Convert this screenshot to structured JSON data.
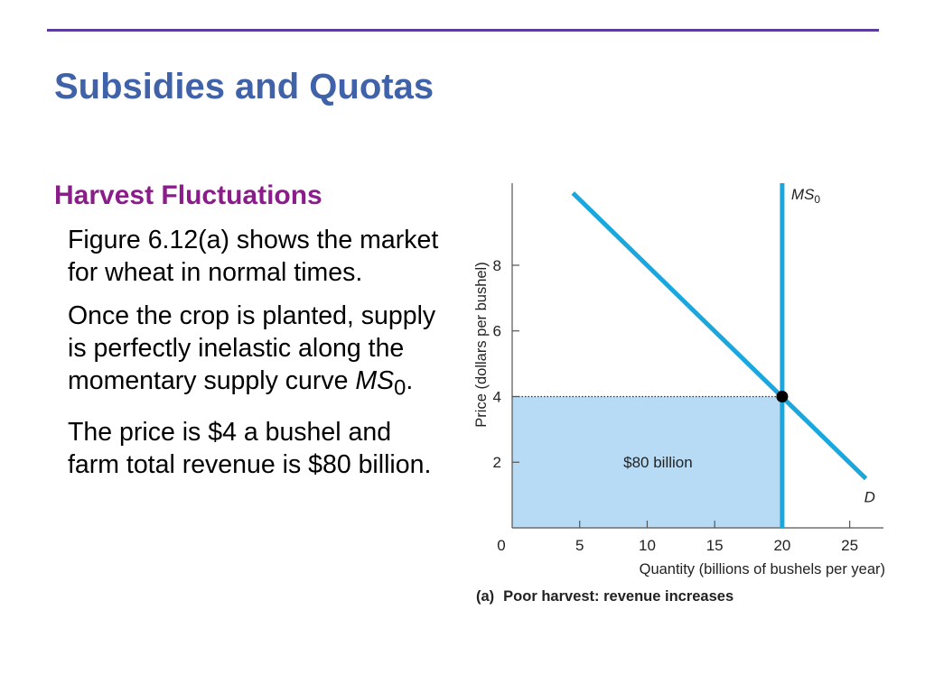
{
  "slide": {
    "title": "Subsidies and Quotas",
    "subtitle": "Harvest Fluctuations",
    "paragraphs": [
      {
        "text": "Figure 6.12(a) shows the market for wheat in normal times."
      },
      {
        "text_before": "Once the crop is planted, supply is perfectly inelastic along the momentary supply curve ",
        "italic": "MS",
        "sub": "0",
        "text_after": "."
      },
      {
        "text": "The price is $4 a bushel and farm total revenue is $80 billion."
      }
    ]
  },
  "colors": {
    "rule": "#5a3c9e",
    "title": "#3f62a9",
    "subtitle": "#8b1d8b",
    "curve": "#1aa7dd",
    "revenue_fill": "#b7dbf5"
  },
  "chart_data": {
    "type": "line",
    "ylabel": "Price (dollars per bushel)",
    "xlabel": "Quantity (billions of bushels per year)",
    "caption_label": "(a)",
    "caption_text": "Poor harvest: revenue increases",
    "xlim": [
      0,
      27.5
    ],
    "ylim": [
      0,
      10.5
    ],
    "x_ticks": [
      0,
      5,
      10,
      15,
      20,
      25
    ],
    "y_ticks": [
      2,
      4,
      6,
      8
    ],
    "origin_label": "0",
    "demand": {
      "name": "D",
      "points": [
        [
          4.5,
          10.2
        ],
        [
          26.2,
          1.5
        ]
      ]
    },
    "supply": {
      "name_main": "MS",
      "name_sub": "0",
      "x": 20,
      "y_range": [
        0,
        10.5
      ]
    },
    "equilibrium": {
      "x": 20,
      "y": 4
    },
    "revenue_area": {
      "label": "$80 billion",
      "x": 20,
      "y": 4
    }
  }
}
